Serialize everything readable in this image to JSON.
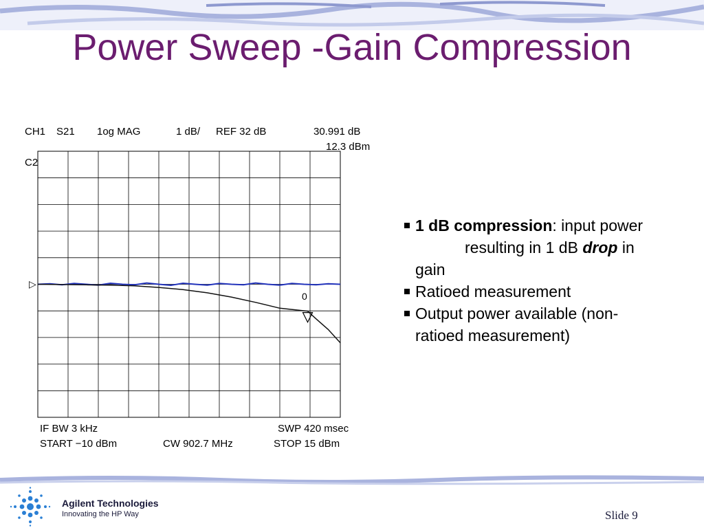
{
  "slide": {
    "title": "Power Sweep -Gain Compression",
    "number_label": "Slide 9"
  },
  "analyzer": {
    "header_line1": {
      "channel": "CH1",
      "param": "S21",
      "format": "1og  MAG",
      "scale": "1 dB/",
      "ref": "REF  32  dB",
      "marker_value": "30.991 dB"
    },
    "header_line2": {
      "marker_power": "12.3 dBm"
    },
    "side_label": "C2",
    "marker_label": "0",
    "footer_line1": {
      "if_bw": "IF   BW  3  kHz",
      "sweep": "SWP  420 msec"
    },
    "footer_line2": {
      "start": "START  −10 dBm",
      "cw": "CW 902.7 MHz",
      "stop": "STOP 15 dBm"
    }
  },
  "chart_data": {
    "type": "line",
    "x_range": [
      -10,
      15
    ],
    "xlabel": "",
    "ylabel": "",
    "grid": true,
    "ref_level": 32,
    "scale_per_div": 1,
    "series": [
      {
        "color": "#2233bb",
        "points": [
          [
            -10,
            32.0
          ],
          [
            -9,
            32.02
          ],
          [
            -8,
            31.98
          ],
          [
            -7,
            32.03
          ],
          [
            -6,
            32.0
          ],
          [
            -5,
            31.97
          ],
          [
            -4,
            32.04
          ],
          [
            -3,
            32.0
          ],
          [
            -2,
            31.98
          ],
          [
            -1,
            32.05
          ],
          [
            0,
            32.0
          ],
          [
            1,
            31.96
          ],
          [
            2,
            32.04
          ],
          [
            3,
            32.0
          ],
          [
            4,
            31.97
          ],
          [
            5,
            32.03
          ],
          [
            6,
            32.0
          ],
          [
            7,
            31.98
          ],
          [
            8,
            32.05
          ],
          [
            9,
            32.0
          ],
          [
            10,
            31.97
          ],
          [
            11,
            32.03
          ],
          [
            12,
            32.0
          ],
          [
            13,
            31.98
          ],
          [
            14,
            32.02
          ],
          [
            15,
            32.0
          ]
        ]
      },
      {
        "color": "#111111",
        "points": [
          [
            -10,
            32.0
          ],
          [
            -8,
            31.99
          ],
          [
            -6,
            31.98
          ],
          [
            -4,
            31.97
          ],
          [
            -2,
            31.94
          ],
          [
            0,
            31.88
          ],
          [
            2,
            31.8
          ],
          [
            4,
            31.68
          ],
          [
            6,
            31.52
          ],
          [
            8,
            31.32
          ],
          [
            10,
            31.1
          ],
          [
            12.3,
            30.99
          ],
          [
            13,
            30.7
          ],
          [
            14,
            30.3
          ],
          [
            15,
            29.8
          ]
        ]
      }
    ]
  },
  "bullets": {
    "b1_bold": "1 dB compression",
    "b1_rest": ": input power",
    "b1_line2": "resulting in 1 dB ",
    "b1_drop": "drop",
    "b1_in": " in",
    "b1_line3": "gain",
    "b2": "Ratioed measurement",
    "b3_line1": "Output power available (non-",
    "b3_line2": "ratioed measurement)"
  },
  "branding": {
    "company": "Agilent Technologies",
    "tagline": "Innovating the HP Way"
  },
  "colors": {
    "title": "#6b1d6f",
    "band": "#9aa6d8",
    "trace_ratio": "#2233bb",
    "trace_power": "#111111",
    "logo": "#2a7fd4"
  }
}
